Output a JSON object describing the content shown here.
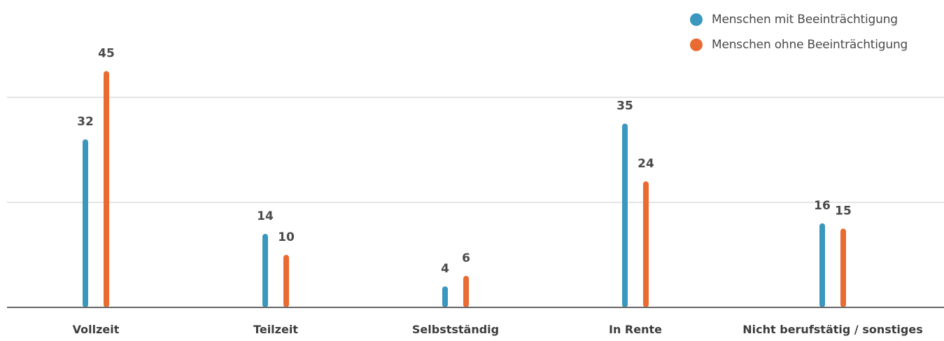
{
  "chart_data": {
    "type": "bar",
    "title": "",
    "xlabel": "",
    "ylabel": "",
    "categories": [
      "Vollzeit",
      "Teilzeit",
      "Selbstständig",
      "In Rente",
      "Nicht berufstätig / sonstiges"
    ],
    "series": [
      {
        "name": "Menschen mit Beeinträchtigung",
        "color": "#3a97be",
        "values": [
          32,
          14,
          4,
          35,
          16
        ]
      },
      {
        "name": "Menschen ohne Beeinträchtigung",
        "color": "#ea6b32",
        "values": [
          45,
          10,
          6,
          24,
          15
        ]
      }
    ],
    "ylim": [
      0,
      50
    ],
    "grid": true,
    "gridlines": [
      20,
      40
    ],
    "legend": "top-right"
  }
}
